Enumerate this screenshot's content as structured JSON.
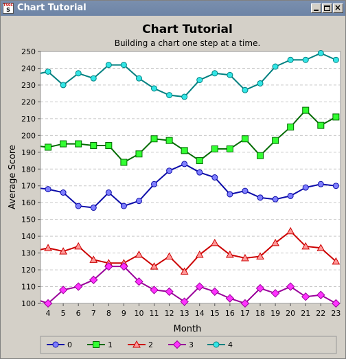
{
  "window": {
    "title": "Chart Tutorial",
    "icon_text_top": "TSSC",
    "icon_text_bottom": "S"
  },
  "chart_data": {
    "type": "line",
    "title": "Chart Tutorial",
    "subtitle": "Building a chart one step at a time.",
    "xlabel": "Month",
    "ylabel": "Average Score",
    "xlim": [
      3.5,
      23.3
    ],
    "ylim": [
      100,
      250
    ],
    "xticks": [
      4,
      5,
      6,
      7,
      8,
      9,
      10,
      11,
      12,
      13,
      14,
      15,
      16,
      17,
      18,
      19,
      20,
      21,
      22,
      23
    ],
    "yticks": [
      100,
      110,
      120,
      130,
      140,
      150,
      160,
      170,
      180,
      190,
      200,
      210,
      220,
      230,
      240,
      250
    ],
    "grid": "horizontal-dashed",
    "legend_position": "bottom",
    "x": [
      3,
      4,
      5,
      6,
      7,
      8,
      9,
      10,
      11,
      12,
      13,
      14,
      15,
      16,
      17,
      18,
      19,
      20,
      21,
      22,
      23
    ],
    "series": [
      {
        "name": "0",
        "marker": "circle",
        "color": "#0b0ba8",
        "fill": "#7f7fff",
        "values": [
          169,
          168,
          166,
          158,
          157,
          166,
          158,
          161,
          171,
          179,
          183,
          178,
          175,
          165,
          167,
          163,
          162,
          164,
          169,
          171,
          170
        ]
      },
      {
        "name": "1",
        "marker": "square",
        "color": "#006b00",
        "fill": "#33ff33",
        "values": [
          194,
          193,
          195,
          195,
          194,
          194,
          184,
          189,
          198,
          197,
          191,
          185,
          192,
          192,
          198,
          188,
          197,
          205,
          215,
          206,
          211
        ]
      },
      {
        "name": "2",
        "marker": "triangle",
        "color": "#cc0000",
        "fill": "#ff9999",
        "values": [
          131,
          133,
          131,
          134,
          126,
          124,
          124,
          129,
          122,
          128,
          119,
          129,
          136,
          129,
          127,
          128,
          136,
          143,
          134,
          133,
          125
        ]
      },
      {
        "name": "3",
        "marker": "diamond",
        "color": "#990099",
        "fill": "#ff33ff",
        "values": [
          103,
          100,
          108,
          110,
          114,
          122,
          122,
          113,
          108,
          107,
          101,
          110,
          107,
          103,
          100,
          109,
          106,
          110,
          104,
          105,
          100
        ]
      },
      {
        "name": "4",
        "marker": "circle",
        "color": "#008080",
        "fill": "#33e6e6",
        "values": [
          236,
          238,
          230,
          237,
          234,
          242,
          242,
          234,
          228,
          224,
          223,
          233,
          237,
          236,
          227,
          231,
          241,
          245,
          245,
          249,
          245
        ]
      }
    ]
  }
}
